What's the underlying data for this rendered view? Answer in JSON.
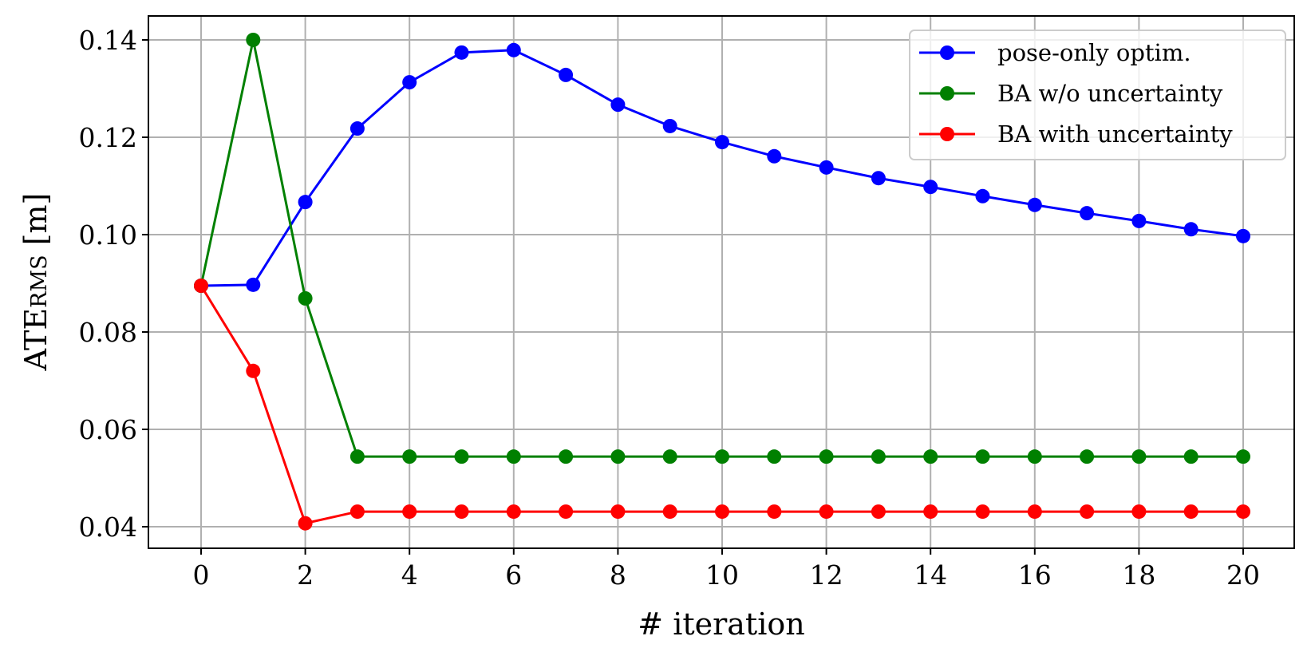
{
  "chart_data": {
    "type": "line",
    "title": "",
    "xlabel": "# iteration",
    "ylabel": "ATE_RMS [m]",
    "ylabel_main": "ATE",
    "ylabel_sub": "RMS",
    "ylabel_unit": " [m]",
    "xlim": [
      -1,
      21.5
    ],
    "ylim": [
      0.0355,
      0.145
    ],
    "xticks": [
      0,
      2,
      4,
      6,
      8,
      10,
      12,
      14,
      16,
      18,
      20
    ],
    "yticks": [
      0.04,
      0.06,
      0.08,
      0.1,
      0.12,
      0.14
    ],
    "ytick_labels": [
      "0.04",
      "0.06",
      "0.08",
      "0.10",
      "0.12",
      "0.14"
    ],
    "grid": true,
    "legend_position": "upper right",
    "x": [
      0,
      1,
      2,
      3,
      4,
      5,
      6,
      7,
      8,
      9,
      10,
      11,
      12,
      13,
      14,
      15,
      16,
      17,
      18,
      19,
      20
    ],
    "series": [
      {
        "name": "pose-only optim.",
        "color": "#0000ff",
        "values": [
          0.0895,
          0.0897,
          0.1067,
          0.1218,
          0.1313,
          0.1374,
          0.1379,
          0.1328,
          0.1267,
          0.1223,
          0.119,
          0.1161,
          0.1138,
          0.1116,
          0.1098,
          0.1079,
          0.1061,
          0.1044,
          0.1028,
          0.1011,
          0.0997
        ]
      },
      {
        "name": "BA w/o uncertainty",
        "color": "#008000",
        "values": [
          0.0895,
          0.14,
          0.0869,
          0.0544,
          0.0544,
          0.0544,
          0.0544,
          0.0544,
          0.0544,
          0.0544,
          0.0544,
          0.0544,
          0.0544,
          0.0544,
          0.0544,
          0.0544,
          0.0544,
          0.0544,
          0.0544,
          0.0544,
          0.0544
        ]
      },
      {
        "name": "BA with uncertainty",
        "color": "#ff0000",
        "values": [
          0.0895,
          0.072,
          0.0407,
          0.0431,
          0.0431,
          0.0431,
          0.0431,
          0.0431,
          0.0431,
          0.0431,
          0.0431,
          0.0431,
          0.0431,
          0.0431,
          0.0431,
          0.0431,
          0.0431,
          0.0431,
          0.0431,
          0.0431,
          0.0431
        ]
      }
    ]
  }
}
